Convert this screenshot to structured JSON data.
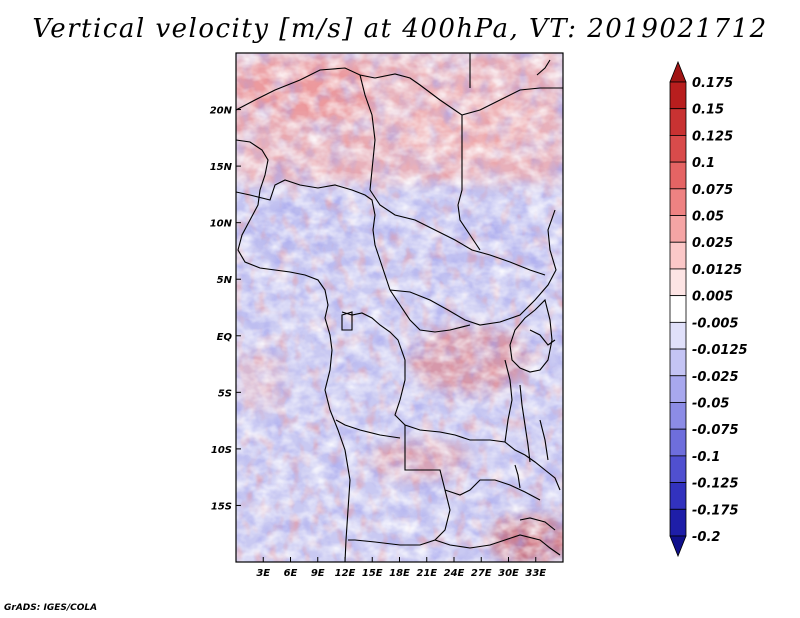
{
  "title": "Vertical velocity [m/s] at 400hPa, VT: 2019021712",
  "footer": "GrADS: IGES/COLA",
  "map": {
    "lon_range": [
      0,
      36
    ],
    "lat_range": [
      -20,
      25
    ],
    "lat_ticks": [
      "20N",
      "15N",
      "10N",
      "5N",
      "EQ",
      "5S",
      "10S",
      "15S"
    ],
    "lat_tick_values": [
      20,
      15,
      10,
      5,
      0,
      -5,
      -10,
      -15
    ],
    "lon_ticks": [
      "3E",
      "6E",
      "9E",
      "12E",
      "15E",
      "18E",
      "21E",
      "24E",
      "27E",
      "30E",
      "33E"
    ],
    "lon_tick_values": [
      3,
      6,
      9,
      12,
      15,
      18,
      21,
      24,
      27,
      30,
      33
    ]
  },
  "colorbar": {
    "labels": [
      "0.175",
      "0.15",
      "0.125",
      "0.1",
      "0.075",
      "0.05",
      "0.025",
      "0.0125",
      "0.005",
      "-0.005",
      "-0.0125",
      "-0.025",
      "-0.05",
      "-0.075",
      "-0.1",
      "-0.125",
      "-0.175",
      "-0.2"
    ],
    "colors": [
      "#a01414",
      "#b81e1e",
      "#c83232",
      "#d94b4b",
      "#e56464",
      "#ee8282",
      "#f5a5a5",
      "#fbc8c8",
      "#fde4e4",
      "#ffffff",
      "#e0e0fa",
      "#c4c4f4",
      "#a8a8ee",
      "#8c8ce6",
      "#6e6edc",
      "#5050d0",
      "#3232be",
      "#1e1ea8",
      "#10108c"
    ]
  }
}
